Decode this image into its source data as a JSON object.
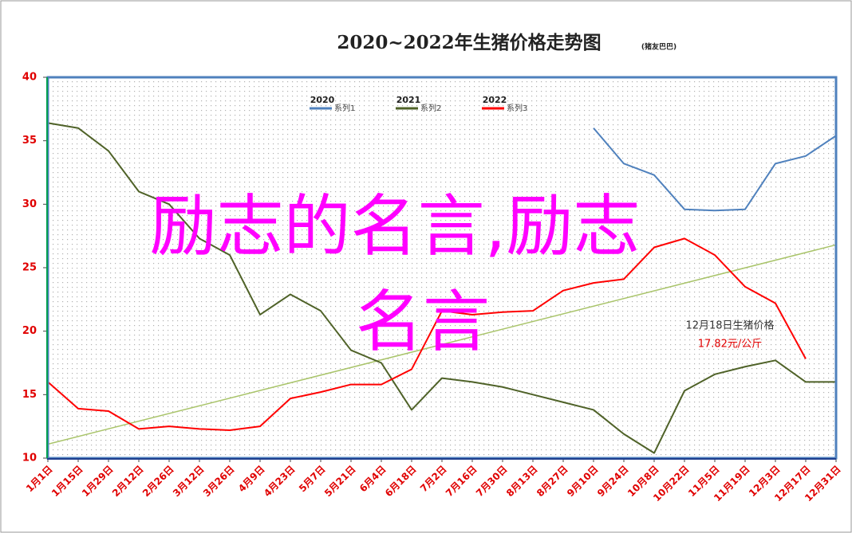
{
  "chart_data": {
    "type": "line",
    "title": "2020~2022年生猪价格走势图",
    "subtitle": "(猪友巴巴)",
    "categories": [
      "1月1日",
      "1月15日",
      "1月29日",
      "2月12日",
      "2月26日",
      "3月12日",
      "3月26日",
      "4月9日",
      "4月23日",
      "5月7日",
      "5月21日",
      "6月4日",
      "6月18日",
      "7月2日",
      "7月16日",
      "7月30日",
      "8月13日",
      "8月27日",
      "9月10日",
      "9月24日",
      "10月8日",
      "10月22日",
      "11月5日",
      "11月19日",
      "12月3日",
      "12月17日",
      "12月31日"
    ],
    "series": [
      {
        "name": "系列1",
        "label": "2020",
        "color": "#4f81bd",
        "values": [
          null,
          null,
          null,
          null,
          null,
          null,
          null,
          null,
          null,
          null,
          null,
          null,
          null,
          null,
          null,
          null,
          null,
          null,
          36.0,
          33.2,
          32.3,
          29.6,
          29.5,
          29.6,
          33.2,
          33.8,
          35.4
        ]
      },
      {
        "name": "系列2",
        "label": "2021",
        "color": "#4f6228",
        "values": [
          36.4,
          36.0,
          34.2,
          31.0,
          30.0,
          27.3,
          26.0,
          21.3,
          22.9,
          21.6,
          18.5,
          17.5,
          13.8,
          16.3,
          16.0,
          15.6,
          15.0,
          14.4,
          13.8,
          11.9,
          10.4,
          15.3,
          16.6,
          17.2,
          17.7,
          16.0,
          16.0
        ]
      },
      {
        "name": "系列3",
        "label": "2022",
        "color": "#ff0000",
        "values": [
          16.0,
          13.9,
          13.7,
          12.3,
          12.5,
          12.3,
          12.2,
          12.5,
          14.7,
          15.2,
          15.8,
          15.8,
          17.0,
          21.6,
          21.3,
          21.5,
          21.6,
          23.2,
          23.8,
          24.1,
          26.6,
          27.3,
          26.0,
          23.5,
          22.2,
          17.82,
          null
        ]
      }
    ],
    "trendline": {
      "color": "#a9c46a",
      "values": [
        11.1,
        26.8
      ]
    },
    "ylim": [
      10,
      40
    ],
    "yticks": [
      10,
      15,
      20,
      25,
      30,
      35,
      40
    ],
    "annotation": [
      "12月18日生猪价格",
      "17.82元/公斤"
    ],
    "overlay_text": [
      "励志的名言,励志",
      "名言"
    ]
  }
}
